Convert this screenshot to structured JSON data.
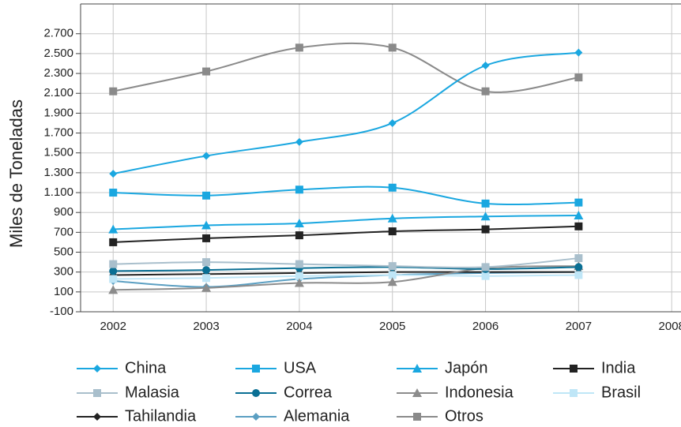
{
  "chart_data": {
    "type": "line",
    "y_label": "Miles de Toneladas",
    "x": [
      2002,
      2003,
      2004,
      2005,
      2006,
      2007
    ],
    "xlim": [
      2001.65,
      2008.1
    ],
    "xticks": [
      2002,
      2003,
      2004,
      2005,
      2006,
      2007,
      2008
    ],
    "ylim": [
      -100,
      3000
    ],
    "yticks": [
      -100,
      100,
      300,
      500,
      700,
      900,
      {
        "value": 1100,
        "label": "1.100"
      },
      {
        "value": 1300,
        "label": "1.300"
      },
      {
        "value": 1500,
        "label": "1.500"
      },
      {
        "value": 1700,
        "label": "1.700"
      },
      {
        "value": 1900,
        "label": "1.900"
      },
      {
        "value": 2100,
        "label": "2.100"
      },
      {
        "value": 2300,
        "label": "2.300"
      },
      {
        "value": 2500,
        "label": "2.500"
      },
      {
        "value": 2700,
        "label": "2.700"
      }
    ],
    "grid": true,
    "smooth": true,
    "series": [
      {
        "name": "China",
        "color": "#1aa7e0",
        "marker": "diamond",
        "values": [
          1290,
          1470,
          1610,
          1800,
          2380,
          2510
        ]
      },
      {
        "name": "USA",
        "color": "#1aa7e0",
        "marker": "square",
        "values": [
          1100,
          1070,
          1130,
          1150,
          990,
          1000
        ]
      },
      {
        "name": "Japón",
        "color": "#1aa7e0",
        "marker": "triangle",
        "values": [
          730,
          770,
          790,
          840,
          860,
          870
        ]
      },
      {
        "name": "India",
        "color": "#222222",
        "marker": "square",
        "values": [
          600,
          640,
          670,
          710,
          730,
          760
        ]
      },
      {
        "name": "Malasia",
        "color": "#a9bfcc",
        "marker": "square",
        "values": [
          380,
          400,
          380,
          360,
          350,
          440
        ]
      },
      {
        "name": "Correa",
        "color": "#0a6f94",
        "marker": "circle",
        "values": [
          310,
          320,
          340,
          350,
          330,
          350
        ]
      },
      {
        "name": "Indonesia",
        "color": "#8c8c8c",
        "marker": "triangle",
        "values": [
          120,
          140,
          190,
          200,
          340,
          360
        ]
      },
      {
        "name": "Brasil",
        "color": "#bfe6f7",
        "marker": "square",
        "values": [
          230,
          240,
          260,
          270,
          260,
          270
        ]
      },
      {
        "name": "Tahilandia",
        "color": "#222222",
        "marker": "diamond",
        "values": [
          270,
          280,
          290,
          300,
          300,
          300
        ]
      },
      {
        "name": "Alemania",
        "color": "#5b9fc2",
        "marker": "diamond",
        "values": [
          210,
          150,
          230,
          270,
          290,
          300
        ]
      },
      {
        "name": "Otros",
        "color": "#8a8a8a",
        "marker": "square",
        "values": [
          2120,
          2320,
          2560,
          2560,
          2120,
          2260
        ]
      }
    ]
  }
}
